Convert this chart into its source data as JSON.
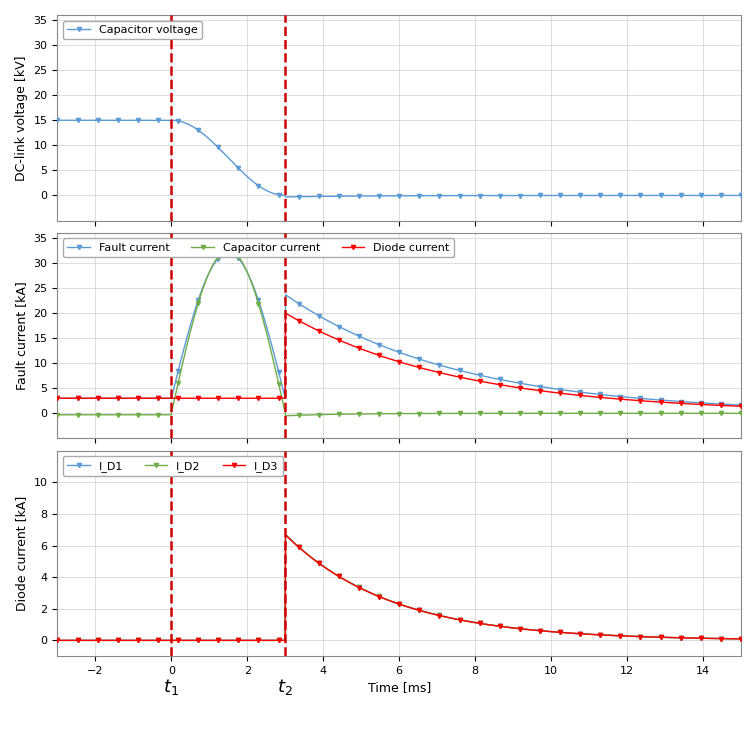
{
  "t1": 0,
  "t2": 3,
  "xmin": -3,
  "xmax": 15,
  "xticks": [
    -2,
    0,
    2,
    4,
    6,
    8,
    10,
    12,
    14
  ],
  "xlabel": "Time [ms]",
  "subplot1": {
    "ylabel": "DC-link voltage [kV]",
    "ylim": [
      -5,
      36
    ],
    "yticks": [
      0,
      5,
      10,
      15,
      20,
      25,
      30,
      35
    ],
    "legend": [
      "Capacitor voltage"
    ],
    "line_colors": [
      "#5B9BD5"
    ],
    "cap_voltage_init": 15.0,
    "cap_voltage_final": 0.0
  },
  "subplot2": {
    "ylabel": "Fault current [kA]",
    "ylim": [
      -5,
      36
    ],
    "yticks": [
      0,
      5,
      10,
      15,
      20,
      25,
      30,
      35
    ],
    "legend": [
      "Fault current",
      "Capacitor current",
      "Diode current"
    ],
    "line_colors": [
      "#5B9BD5",
      "#70AD47",
      "#FF0000"
    ],
    "fault_pre": 3.0,
    "fault_peak": 32.0,
    "fault_decay_tau": 4.5,
    "cap_peak": 32.5,
    "diode_pre": 3.0,
    "diode_peak": 20.0,
    "diode_decay_tau": 4.5
  },
  "subplot3": {
    "ylabel": "Diode current [kA]",
    "ylim": [
      -1,
      12
    ],
    "yticks": [
      0,
      2,
      4,
      6,
      8,
      10
    ],
    "legend": [
      "I_D1",
      "I_D2",
      "I_D3"
    ],
    "line_colors": [
      "#5B9BD5",
      "#70AD47",
      "#FF0000"
    ],
    "diode_peak": 6.7,
    "diode_decay_tau": 2.8
  },
  "vline_color": "#CC0000",
  "background_color": "#FFFFFF",
  "grid_color": "#D0D0D0",
  "marker_color_blue": "#5B9BD5",
  "marker_color_green": "#70AD47",
  "marker_color_red": "#FF0000"
}
